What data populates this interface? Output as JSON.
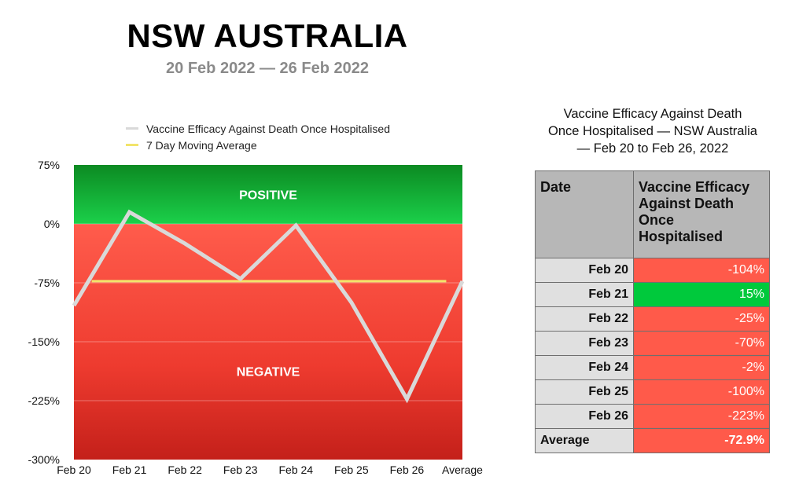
{
  "header": {
    "title": "NSW AUSTRALIA",
    "subtitle": "20 Feb 2022 — 26 Feb 2022"
  },
  "colors": {
    "negative": "#ff5a4a",
    "positive": "#00c93c",
    "line": "#d9d9d9",
    "average_line": "#f2e46b"
  },
  "chart_data": {
    "type": "line",
    "categories": [
      "Feb 20",
      "Feb 21",
      "Feb 22",
      "Feb 23",
      "Feb 24",
      "Feb 25",
      "Feb 26",
      "Average"
    ],
    "series": [
      {
        "name": "Vaccine Efficacy Against Death Once Hospitalised",
        "color": "#d9d9d9",
        "values": [
          -104,
          15,
          -25,
          -70,
          -2,
          -100,
          -223,
          -72.9
        ]
      },
      {
        "name": "7 Day Moving Average",
        "color": "#f2e46b",
        "values": [
          null,
          -72.9,
          -72.9,
          -72.9,
          -72.9,
          -72.9,
          -72.9,
          null
        ]
      }
    ],
    "ylim": [
      -300,
      75
    ],
    "yticks": [
      75,
      0,
      -75,
      -150,
      -225,
      -300
    ],
    "ytick_labels": [
      "75%",
      "0%",
      "-75%",
      "-150%",
      "-225%",
      "-300%"
    ],
    "zones": {
      "positive_label": "POSITIVE",
      "negative_label": "NEGATIVE"
    },
    "legend_position": "top",
    "grid": true
  },
  "table": {
    "title_lines": [
      "Vaccine Efficacy Against Death",
      "Once Hospitalised — NSW Australia",
      "— Feb 20 to Feb 26, 2022"
    ],
    "header_date": "Date",
    "header_value_lines": [
      "Vaccine Efficacy",
      "Against Death",
      "Once",
      "Hospitalised"
    ],
    "rows": [
      {
        "label": "Feb 20",
        "value": "-104%",
        "color": "#ff5a4a"
      },
      {
        "label": "Feb 21",
        "value": "15%",
        "color": "#00c93c"
      },
      {
        "label": "Feb 22",
        "value": "-25%",
        "color": "#ff5a4a"
      },
      {
        "label": "Feb 23",
        "value": "-70%",
        "color": "#ff5a4a"
      },
      {
        "label": "Feb 24",
        "value": "-2%",
        "color": "#ff5a4a"
      },
      {
        "label": "Feb 25",
        "value": "-100%",
        "color": "#ff5a4a"
      },
      {
        "label": "Feb 26",
        "value": "-223%",
        "color": "#ff5a4a"
      }
    ],
    "average": {
      "label": "Average",
      "value": "-72.9%",
      "color": "#ff5a4a"
    }
  }
}
